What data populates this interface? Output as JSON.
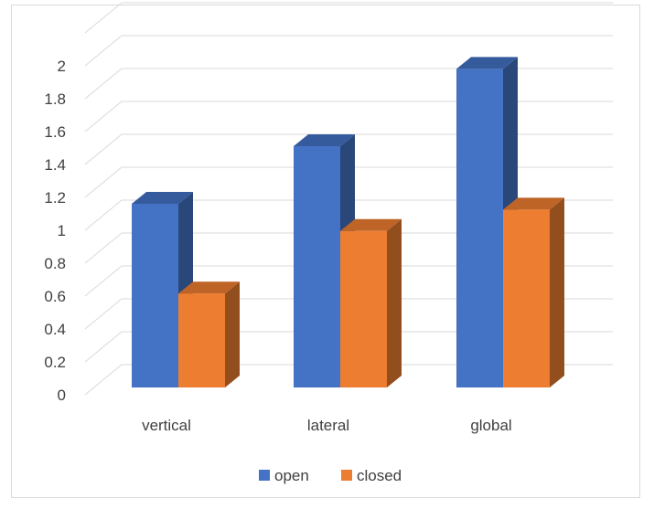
{
  "chart_data": {
    "type": "bar",
    "variant": "3d-clustered-column",
    "title": "",
    "xlabel": "",
    "ylabel": "",
    "categories": [
      "vertical",
      "lateral",
      "global"
    ],
    "series": [
      {
        "name": "open",
        "values": [
          1.15,
          1.5,
          1.97
        ],
        "color": "#4472c4"
      },
      {
        "name": "closed",
        "values": [
          0.66,
          1.04,
          1.17
        ],
        "color": "#ed7d31"
      }
    ],
    "ylim": [
      0,
      2.2
    ],
    "yticks": [
      "0",
      "0.2",
      "0.4",
      "0.6",
      "0.8",
      "1",
      "1.2",
      "1.4",
      "1.6",
      "1.8",
      "2"
    ],
    "grid": true,
    "legend": "bottom"
  }
}
